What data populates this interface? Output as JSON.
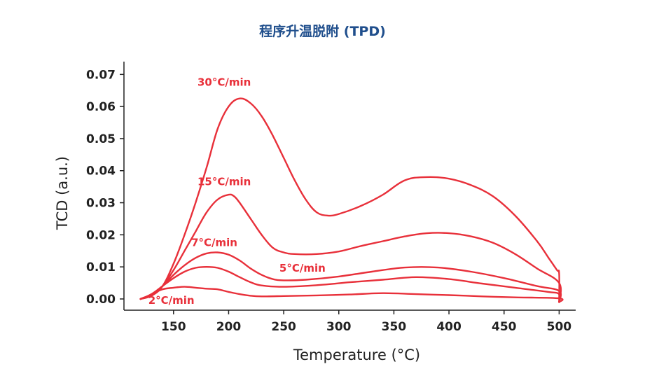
{
  "chart_data": {
    "type": "line",
    "title": "程序升温脱附 (TPD)",
    "xlabel": "Temperature (°C)",
    "ylabel": "TCD (a.u.)",
    "xlim": [
      105,
      515
    ],
    "ylim": [
      -0.0035,
      0.074
    ],
    "x_ticks": [
      150,
      200,
      250,
      300,
      350,
      400,
      450,
      500
    ],
    "x_tick_labels": [
      "150",
      "200",
      "250",
      "300",
      "350",
      "400",
      "450",
      "500"
    ],
    "y_ticks": [
      0.0,
      0.01,
      0.02,
      0.03,
      0.04,
      0.05,
      0.06,
      0.07
    ],
    "y_tick_labels": [
      "0.00",
      "0.01",
      "0.02",
      "0.03",
      "0.04",
      "0.05",
      "0.06",
      "0.07"
    ],
    "grid": false,
    "legend": "none",
    "line_color": "#e8303a",
    "series": [
      {
        "name": "30°C/min",
        "x": [
          120,
          130,
          140,
          150,
          160,
          170,
          180,
          190,
          200,
          210,
          220,
          230,
          240,
          250,
          260,
          270,
          280,
          290,
          300,
          320,
          340,
          360,
          380,
          400,
          420,
          440,
          460,
          480,
          490,
          498,
          500,
          500
        ],
        "y": [
          0.0,
          0.001,
          0.004,
          0.011,
          0.02,
          0.03,
          0.041,
          0.053,
          0.06,
          0.0625,
          0.061,
          0.057,
          0.051,
          0.044,
          0.037,
          0.031,
          0.027,
          0.026,
          0.0265,
          0.029,
          0.0325,
          0.037,
          0.038,
          0.0375,
          0.0355,
          0.032,
          0.026,
          0.018,
          0.013,
          0.009,
          0.008,
          -0.001
        ]
      },
      {
        "name": "15°C/min",
        "x": [
          120,
          130,
          140,
          150,
          160,
          170,
          180,
          190,
          200,
          205,
          210,
          220,
          230,
          240,
          250,
          260,
          280,
          300,
          320,
          340,
          360,
          380,
          400,
          420,
          440,
          460,
          480,
          500,
          500
        ],
        "y": [
          0.0,
          0.001,
          0.004,
          0.009,
          0.015,
          0.021,
          0.027,
          0.031,
          0.0325,
          0.032,
          0.03,
          0.025,
          0.02,
          0.016,
          0.0145,
          0.014,
          0.014,
          0.0148,
          0.0165,
          0.018,
          0.0195,
          0.0205,
          0.0205,
          0.0195,
          0.0175,
          0.014,
          0.0095,
          0.005,
          -0.001
        ]
      },
      {
        "name": "7°C/min",
        "x": [
          120,
          130,
          140,
          150,
          160,
          170,
          180,
          190,
          200,
          210,
          220,
          230,
          240,
          250,
          270,
          300,
          330,
          360,
          390,
          420,
          450,
          480,
          500,
          500
        ],
        "y": [
          0.0,
          0.0015,
          0.004,
          0.0075,
          0.0105,
          0.0128,
          0.0142,
          0.0145,
          0.0138,
          0.012,
          0.0095,
          0.0075,
          0.0062,
          0.0058,
          0.006,
          0.007,
          0.0085,
          0.0098,
          0.0098,
          0.0085,
          0.0065,
          0.004,
          0.0025,
          -0.001
        ]
      },
      {
        "name": "5°C/min",
        "x": [
          120,
          130,
          140,
          150,
          160,
          170,
          180,
          190,
          200,
          210,
          220,
          230,
          250,
          280,
          310,
          340,
          370,
          400,
          430,
          460,
          490,
          500,
          500
        ],
        "y": [
          0.0,
          0.0015,
          0.004,
          0.0065,
          0.0085,
          0.0097,
          0.01,
          0.0097,
          0.0085,
          0.0068,
          0.0052,
          0.0042,
          0.0038,
          0.0043,
          0.0052,
          0.006,
          0.0068,
          0.0062,
          0.0048,
          0.0035,
          0.0022,
          0.0015,
          -0.001
        ]
      },
      {
        "name": "2°C/min",
        "x": [
          120,
          125,
          130,
          140,
          150,
          160,
          170,
          180,
          190,
          200,
          210,
          220,
          230,
          250,
          280,
          310,
          340,
          370,
          400,
          430,
          460,
          500,
          500
        ],
        "y": [
          0.0,
          0.0005,
          0.0015,
          0.003,
          0.0035,
          0.0038,
          0.0035,
          0.0032,
          0.003,
          0.0022,
          0.0015,
          0.001,
          0.0008,
          0.0009,
          0.0011,
          0.0014,
          0.0018,
          0.0015,
          0.0012,
          0.0008,
          0.0005,
          0.0002,
          -0.001
        ]
      }
    ],
    "series_labels": [
      {
        "text": "30°C/min",
        "x": 196,
        "y": 0.0665
      },
      {
        "text": "15°C/min",
        "x": 196,
        "y": 0.0355
      },
      {
        "text": "7°C/min",
        "x": 187,
        "y": 0.0165
      },
      {
        "text": "5°C/min",
        "x": 267,
        "y": 0.0085
      },
      {
        "text": "2°C/min",
        "x": 148,
        "y": -0.0015
      }
    ]
  }
}
